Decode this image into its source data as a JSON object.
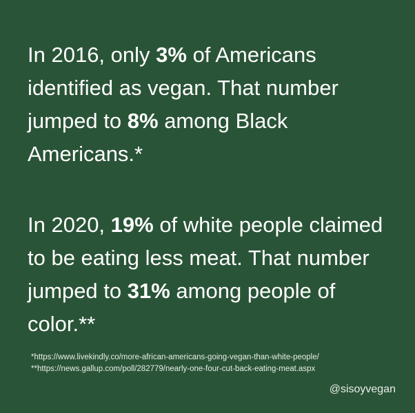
{
  "paragraphs": [
    {
      "runs": [
        {
          "text": "In 2016, only ",
          "bold": false
        },
        {
          "text": "3%",
          "bold": true
        },
        {
          "text": " of Americans identified as vegan. That number jumped to ",
          "bold": false
        },
        {
          "text": "8%",
          "bold": true
        },
        {
          "text": " among Black Americans.*",
          "bold": false
        }
      ]
    },
    {
      "runs": [
        {
          "text": "In 2020, ",
          "bold": false
        },
        {
          "text": "19%",
          "bold": true
        },
        {
          "text": " of white people claimed to be eating less meat. That number jumped to ",
          "bold": false
        },
        {
          "text": "31%",
          "bold": true
        },
        {
          "text": " among people of color.**",
          "bold": false
        }
      ]
    }
  ],
  "footnotes": [
    "*https://www.livekindly.co/more-african-americans-going-vegan-than-white-people/",
    "**https://news.gallup.com/poll/282779/nearly-one-four-cut-back-eating-meat.aspx"
  ],
  "handle": "@sisoyvegan"
}
